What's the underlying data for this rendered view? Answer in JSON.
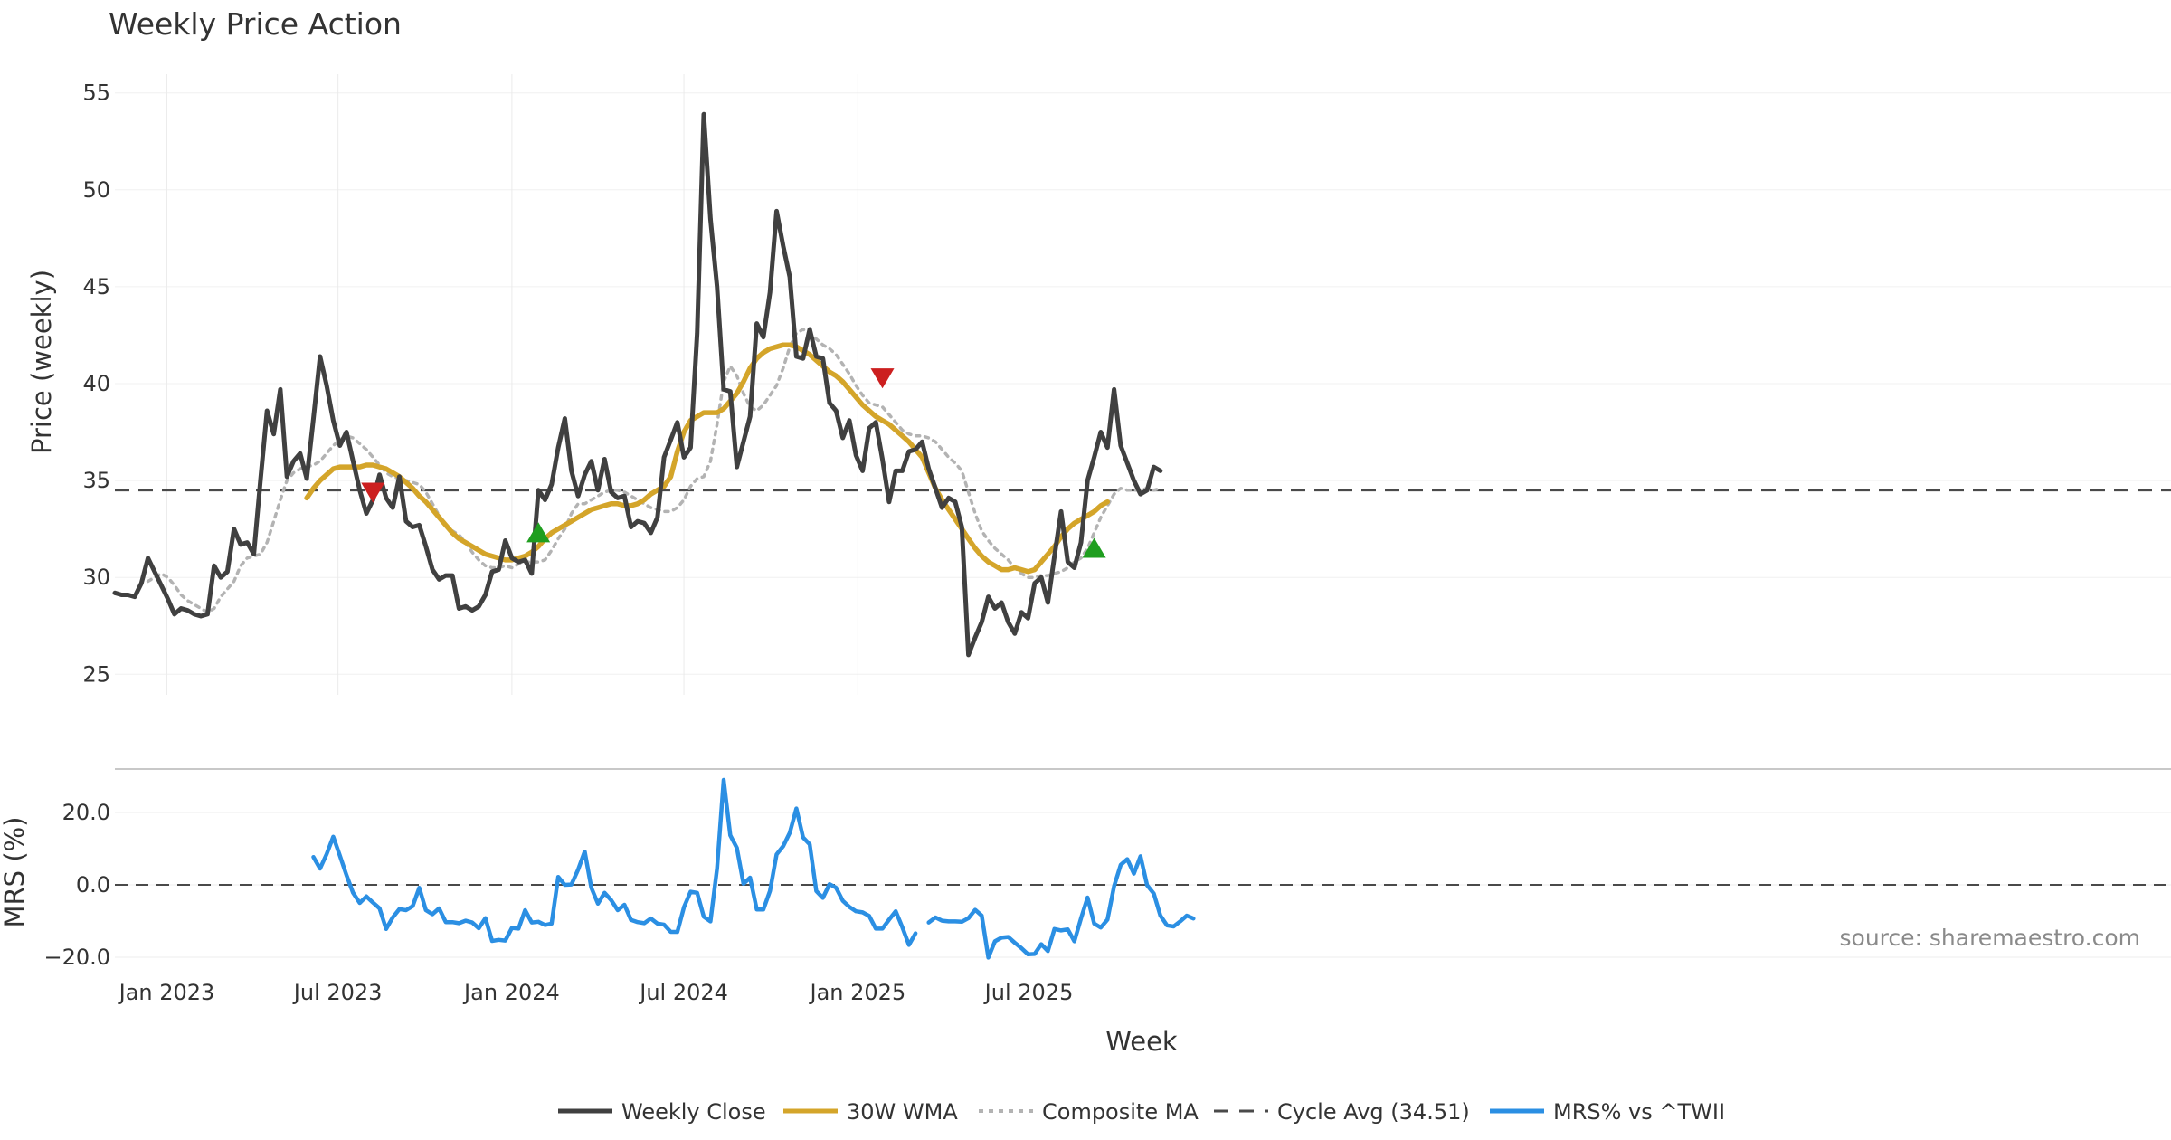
{
  "chart_data": {
    "type": "line",
    "title": "Weekly Price Action",
    "xlabel": "Week",
    "ylabel_price": "Price (weekly)",
    "ylabel_mrs": "MRS (%)",
    "watermark": "source: sharemaestro.com",
    "x_start": "2022-11-07",
    "price_ylim": [
      24.5,
      55.5
    ],
    "price_yticks": [
      "25",
      "30",
      "35",
      "40",
      "45",
      "50",
      "55"
    ],
    "mrs_ylim": [
      -22,
      29
    ],
    "mrs_yticks": [
      "−20.0",
      "0.0",
      "20.0"
    ],
    "x_ticks": [
      "Jan 2023",
      "Jul 2023",
      "Jan 2024",
      "Jul 2024",
      "Jan 2025",
      "Jul 2025"
    ],
    "cycle_avg": 34.51,
    "colors": {
      "close": "#404040",
      "wma": "#d4a52a",
      "composite": "#b3b3b3",
      "cycle": "#4a4a4a",
      "mrs": "#2b8fe3",
      "sell": "#cc1f1f",
      "buy": "#1f9e1f"
    },
    "series": [
      {
        "name": "Weekly Close",
        "offset": 0,
        "values": [
          29.2,
          29.1,
          29.1,
          29.0,
          29.7,
          31.0,
          30.3,
          29.6,
          28.9,
          28.1,
          28.4,
          28.3,
          28.1,
          28.0,
          28.1,
          30.6,
          30.0,
          30.3,
          32.5,
          31.7,
          31.8,
          31.2,
          35.0,
          38.6,
          37.4,
          39.7,
          35.2,
          36.0,
          36.4,
          35.1,
          38.2,
          41.4,
          39.9,
          38.1,
          36.8,
          37.5,
          36.0,
          34.5,
          33.3,
          34.0,
          35.3,
          34.1,
          33.6,
          35.2,
          32.9,
          32.6,
          32.7,
          31.6,
          30.4,
          29.9,
          30.1,
          30.1,
          28.4,
          28.5,
          28.3,
          28.5,
          29.1,
          30.3,
          30.4,
          31.9,
          31.0,
          30.8,
          30.9,
          30.2,
          34.5,
          34.0,
          34.8,
          36.7,
          38.2,
          35.5,
          34.2,
          35.3,
          36.0,
          34.5,
          36.1,
          34.4,
          34.1,
          34.2,
          32.6,
          32.9,
          32.8,
          32.3,
          33.1,
          36.2,
          37.1,
          38.0,
          36.2,
          36.7,
          42.6,
          53.9,
          48.5,
          45.0,
          39.7,
          39.6,
          35.7,
          37.0,
          38.3,
          43.1,
          42.4,
          44.7,
          48.9,
          47.1,
          45.5,
          41.4,
          41.3,
          42.8,
          41.4,
          41.3,
          39.0,
          38.6,
          37.2,
          38.1,
          36.3,
          35.5,
          37.7,
          38.0,
          36.1,
          33.9,
          35.5,
          35.5,
          36.5,
          36.6,
          37.0,
          35.6,
          34.6,
          33.6,
          34.1,
          33.9,
          32.6,
          26.0,
          26.9,
          27.7,
          29.0,
          28.4,
          28.7,
          27.7,
          27.1,
          28.2,
          27.9,
          29.7,
          30.0,
          28.7,
          31.1,
          33.4,
          30.8,
          30.5,
          31.8,
          35.0,
          36.2,
          37.5,
          36.7,
          39.7,
          36.8,
          35.9,
          35.0,
          34.3,
          34.5,
          35.7,
          35.5
        ]
      },
      {
        "name": "30W WMA",
        "offset": 29,
        "values": [
          34.1,
          34.6,
          35.0,
          35.3,
          35.6,
          35.7,
          35.7,
          35.7,
          35.7,
          35.8,
          35.8,
          35.7,
          35.6,
          35.4,
          35.2,
          34.9,
          34.6,
          34.2,
          33.9,
          33.5,
          33.1,
          32.7,
          32.3,
          32.0,
          31.8,
          31.6,
          31.4,
          31.2,
          31.1,
          31.0,
          30.9,
          30.9,
          31.0,
          31.1,
          31.3,
          31.6,
          32.0,
          32.3,
          32.5,
          32.7,
          32.9,
          33.1,
          33.3,
          33.5,
          33.6,
          33.7,
          33.8,
          33.8,
          33.7,
          33.7,
          33.8,
          34.0,
          34.3,
          34.5,
          34.7,
          35.2,
          36.5,
          37.5,
          38.1,
          38.3,
          38.5,
          38.5,
          38.5,
          38.7,
          39.1,
          39.5,
          40.1,
          40.8,
          41.3,
          41.6,
          41.8,
          41.9,
          42.0,
          42.0,
          41.9,
          41.7,
          41.5,
          41.2,
          40.9,
          40.6,
          40.4,
          40.1,
          39.7,
          39.3,
          38.9,
          38.6,
          38.3,
          38.1,
          37.9,
          37.6,
          37.3,
          37.0,
          36.6,
          36.2,
          35.4,
          34.6,
          34.0,
          33.5,
          33.0,
          32.5,
          32.0,
          31.5,
          31.1,
          30.8,
          30.6,
          30.4,
          30.4,
          30.5,
          30.4,
          30.3,
          30.4,
          30.8,
          31.2,
          31.6,
          32.1,
          32.5,
          32.8,
          33.0,
          33.2,
          33.4,
          33.7,
          33.9
        ]
      },
      {
        "name": "Composite MA",
        "offset": 5,
        "values": [
          29.8,
          30.0,
          30.2,
          30.0,
          29.6,
          29.1,
          28.8,
          28.6,
          28.4,
          28.2,
          28.4,
          29.0,
          29.4,
          29.8,
          30.6,
          31.0,
          31.1,
          31.2,
          31.8,
          32.9,
          34.0,
          35.0,
          35.4,
          35.6,
          35.7,
          35.8,
          36.0,
          36.4,
          36.8,
          37.1,
          37.3,
          37.2,
          36.9,
          36.6,
          36.2,
          35.8,
          35.4,
          35.2,
          35.1,
          35.0,
          34.9,
          34.8,
          34.4,
          33.8,
          33.2,
          32.7,
          32.4,
          32.2,
          31.8,
          31.3,
          30.9,
          30.6,
          30.5,
          30.5,
          30.6,
          30.5,
          30.7,
          30.8,
          30.8,
          30.8,
          30.9,
          31.4,
          32.0,
          32.5,
          33.3,
          33.8,
          33.8,
          34.0,
          34.2,
          34.4,
          34.5,
          34.5,
          34.4,
          34.2,
          34.0,
          33.8,
          33.6,
          33.5,
          33.4,
          33.4,
          33.6,
          34.0,
          34.7,
          35.1,
          35.2,
          36.0,
          37.9,
          40.1,
          40.9,
          40.4,
          39.5,
          38.8,
          38.6,
          38.9,
          39.4,
          39.9,
          40.8,
          41.9,
          42.6,
          42.8,
          42.6,
          42.3,
          42.0,
          41.8,
          41.5,
          41.0,
          40.5,
          39.9,
          39.4,
          39.0,
          38.9,
          38.8,
          38.4,
          38.0,
          37.6,
          37.4,
          37.3,
          37.3,
          37.2,
          37.0,
          36.6,
          36.2,
          35.9,
          35.5,
          34.4,
          33.3,
          32.4,
          31.9,
          31.5,
          31.2,
          30.9,
          30.5,
          30.2,
          30.0,
          30.0,
          30.1,
          30.1,
          30.2,
          30.3,
          30.5,
          30.8,
          31.0,
          31.5,
          32.3,
          33.1,
          33.7,
          34.3,
          34.6,
          34.5,
          34.5,
          34.5,
          34.6,
          34.5,
          34.6
        ]
      },
      {
        "name": "MRS% vs ^TWII",
        "offset": 30,
        "values": [
          7.7,
          4.5,
          8.5,
          13.3,
          8.1,
          2.7,
          -2.2,
          -5.0,
          -3.2,
          -4.9,
          -6.5,
          -12.2,
          -9.0,
          -6.7,
          -7.0,
          -5.9,
          -0.8,
          -7.0,
          -8.1,
          -6.5,
          -10.3,
          -10.3,
          -10.6,
          -9.9,
          -10.4,
          -12.0,
          -9.2,
          -15.5,
          -15.2,
          -15.4,
          -11.9,
          -12.1,
          -7.0,
          -10.4,
          -10.2,
          -11.1,
          -10.7,
          2.2,
          0.0,
          0.1,
          4.2,
          9.2,
          -0.8,
          -5.2,
          -2.2,
          -4.2,
          -7.0,
          -5.5,
          -9.7,
          -10.3,
          -10.6,
          -9.3,
          -10.7,
          -11.0,
          -13.0,
          -13.0,
          -6.2,
          -1.9,
          -2.2,
          -8.8,
          -10.1,
          4.5,
          29.0,
          13.7,
          10.2,
          0.3,
          2.0,
          -6.8,
          -6.8,
          -1.7,
          8.4,
          10.7,
          14.4,
          21.1,
          13.1,
          11.2,
          -1.7,
          -3.6,
          0.2,
          -0.8,
          -4.4,
          -6.1,
          -7.3,
          -7.6,
          -8.6,
          -12.1,
          -12.1,
          -9.6,
          -7.3,
          -11.7,
          -16.6,
          -13.4,
          null,
          -10.4,
          -9.0,
          -9.9,
          -10.1,
          -10.1,
          -10.2,
          -9.2,
          -6.9,
          -8.5,
          -20.1,
          -15.6,
          -14.6,
          -14.4,
          -16.0,
          -17.5,
          -19.2,
          -19.1,
          -16.4,
          -18.3,
          -12.2,
          -12.6,
          -12.3,
          -15.6,
          -9.3,
          -3.5,
          -10.7,
          -11.8,
          -9.6,
          -0.4,
          5.5,
          7.1,
          3.1,
          7.9,
          -0.1,
          -2.4,
          -8.5,
          -11.2,
          -11.5,
          -10.1,
          -8.5,
          -9.3
        ]
      }
    ],
    "markers": [
      {
        "type": "sell",
        "week": 39,
        "value": 34.4
      },
      {
        "type": "buy",
        "week": 64,
        "value": 32.3
      },
      {
        "type": "sell",
        "week": 116,
        "value": 40.3
      },
      {
        "type": "buy",
        "week": 148,
        "value": 31.5
      }
    ],
    "legend": [
      {
        "label": "Weekly Close",
        "style": "close"
      },
      {
        "label": "30W WMA",
        "style": "wma"
      },
      {
        "label": "Composite MA",
        "style": "composite"
      },
      {
        "label": "Cycle Avg (34.51)",
        "style": "cycle"
      },
      {
        "label": "MRS% vs ^TWII",
        "style": "mrs"
      }
    ]
  }
}
